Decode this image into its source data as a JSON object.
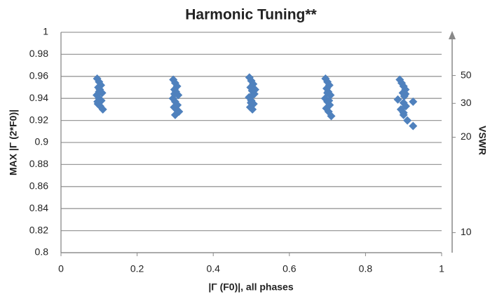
{
  "chart_data": {
    "type": "scatter",
    "title": "Harmonic Tuning**",
    "xlabel": "|Γ (F0)|, all phases",
    "ylabel": "MAX |Γ (2*F0)|",
    "y2label": "VSWR",
    "xlim": [
      0,
      1
    ],
    "xticks": [
      0,
      0.2,
      0.4,
      0.6,
      0.8,
      1
    ],
    "ylim": [
      0.8,
      1
    ],
    "yticks": [
      0.8,
      0.82,
      0.84,
      0.86,
      0.88,
      0.9,
      0.92,
      0.94,
      0.96,
      0.98,
      1
    ],
    "y2scale": "vswr",
    "y2ticks": [
      10,
      20,
      30,
      50
    ],
    "grid": true,
    "series": [
      {
        "name": "Harmonic Tuning",
        "color": "#4f81bd",
        "x": [
          0.095,
          0.1,
          0.105,
          0.098,
          0.102,
          0.108,
          0.094,
          0.1,
          0.106,
          0.097,
          0.103,
          0.11,
          0.1,
          0.096,
          0.295,
          0.3,
          0.305,
          0.298,
          0.302,
          0.308,
          0.294,
          0.3,
          0.306,
          0.297,
          0.303,
          0.31,
          0.3,
          0.298,
          0.495,
          0.5,
          0.505,
          0.498,
          0.502,
          0.508,
          0.494,
          0.5,
          0.506,
          0.497,
          0.503,
          0.51,
          0.5,
          0.499,
          0.695,
          0.7,
          0.705,
          0.698,
          0.702,
          0.708,
          0.694,
          0.7,
          0.706,
          0.697,
          0.703,
          0.71,
          0.7,
          0.704,
          0.89,
          0.895,
          0.9,
          0.905,
          0.898,
          0.902,
          0.885,
          0.9,
          0.906,
          0.893,
          0.9,
          0.91,
          0.905,
          0.925,
          0.925,
          0.9
        ],
        "values": [
          0.958,
          0.955,
          0.952,
          0.95,
          0.948,
          0.945,
          0.943,
          0.94,
          0.938,
          0.935,
          0.933,
          0.93,
          0.946,
          0.937,
          0.957,
          0.954,
          0.951,
          0.948,
          0.946,
          0.943,
          0.94,
          0.937,
          0.934,
          0.932,
          0.93,
          0.928,
          0.925,
          0.944,
          0.959,
          0.956,
          0.953,
          0.95,
          0.947,
          0.944,
          0.941,
          0.938,
          0.935,
          0.932,
          0.93,
          0.948,
          0.942,
          0.936,
          0.958,
          0.955,
          0.952,
          0.949,
          0.946,
          0.943,
          0.94,
          0.937,
          0.934,
          0.931,
          0.928,
          0.924,
          0.945,
          0.938,
          0.957,
          0.954,
          0.951,
          0.948,
          0.945,
          0.942,
          0.939,
          0.936,
          0.933,
          0.93,
          0.927,
          0.92,
          0.944,
          0.937,
          0.915,
          0.925
        ]
      }
    ]
  }
}
